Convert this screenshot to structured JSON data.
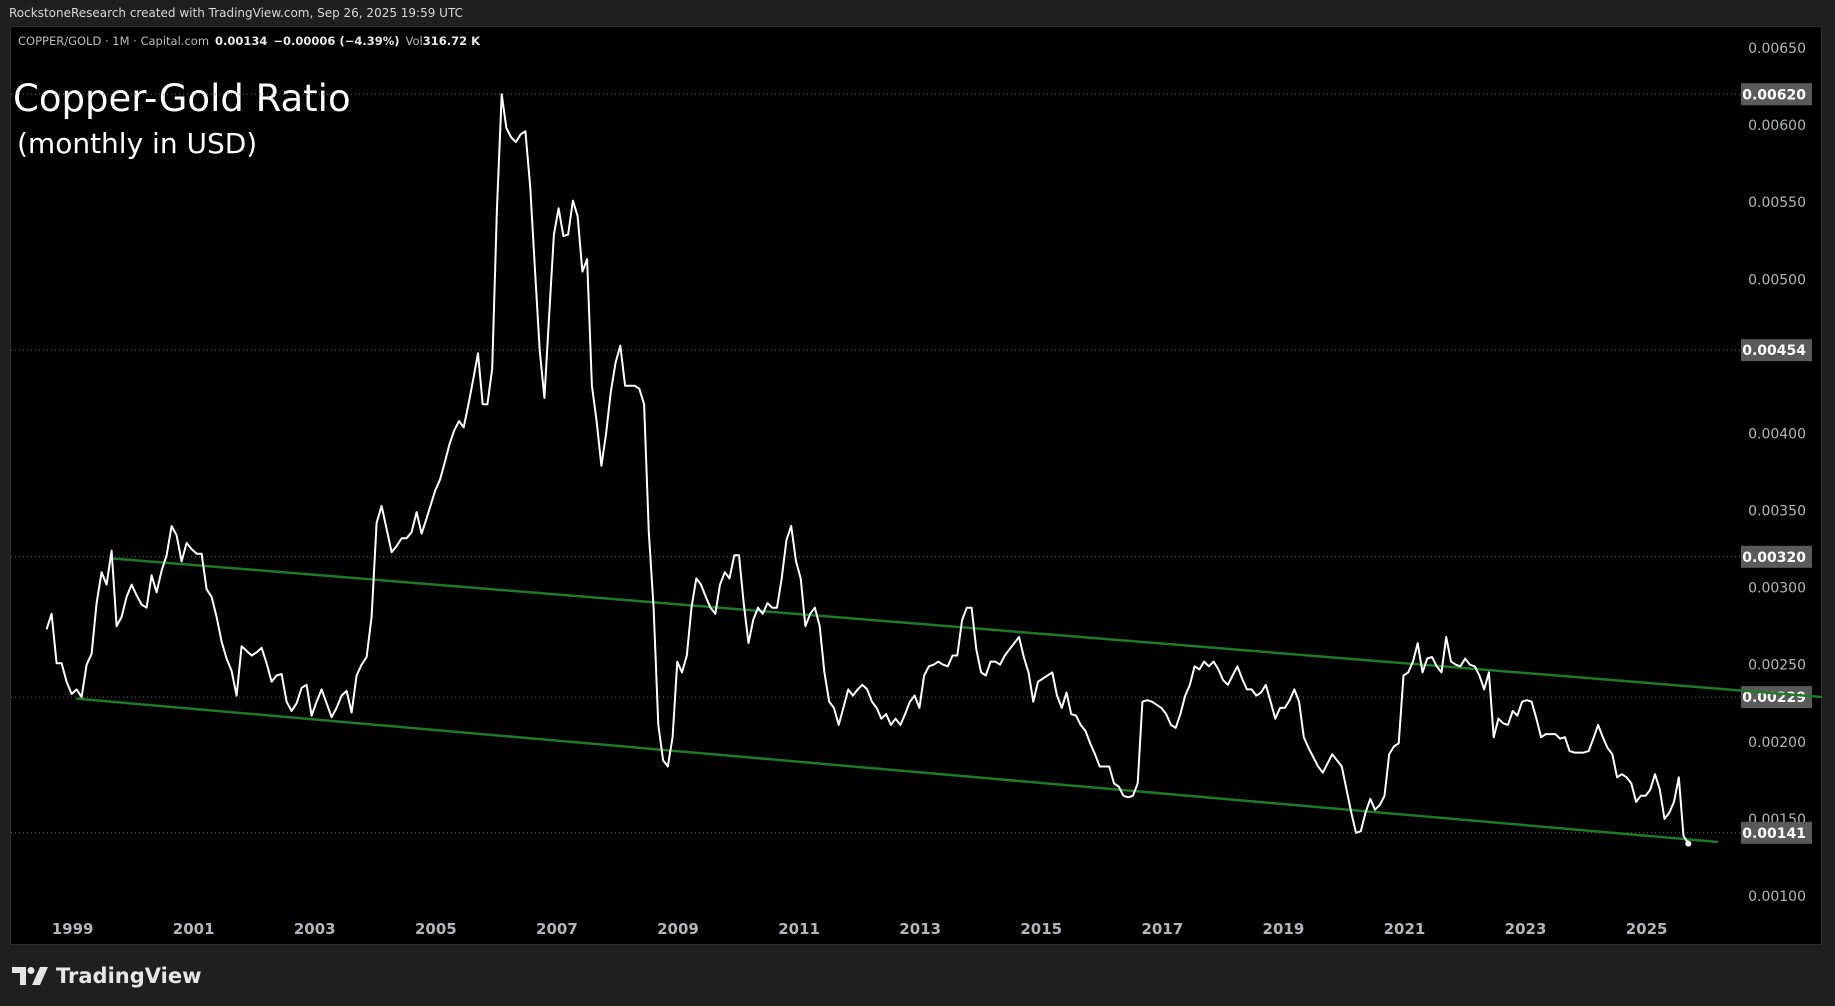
{
  "header": {
    "credit": "RockstoneResearch created with TradingView.com, Sep 26, 2025 19:59 UTC"
  },
  "legend": {
    "symbol": "COPPER/GOLD · 1M · Capital.com",
    "last": "0.00134",
    "change": "−0.00006 (−4.39%)",
    "vol_label": "Vol",
    "vol": "316.72 K"
  },
  "annotation": {
    "title": "Copper-Gold Ratio",
    "subtitle": "(monthly in USD)"
  },
  "footer": {
    "brand": "TradingView"
  },
  "colors": {
    "line": "#ffffff",
    "channel": "#1e7a2a",
    "label_bg": "#5a5a5a",
    "axis_text": "#b2b5be"
  },
  "chart_data": {
    "type": "line",
    "title": "Copper-Gold Ratio (monthly in USD)",
    "xlabel": "",
    "ylabel": "",
    "xlim": [
      1998.4,
      2028.0
    ],
    "ylim": [
      0.001,
      0.0065
    ],
    "x_ticks": [
      "1999",
      "2001",
      "2003",
      "2005",
      "2007",
      "2009",
      "2011",
      "2013",
      "2015",
      "2017",
      "2019",
      "2021",
      "2023",
      "2025"
    ],
    "y_ticks": [
      "0.00650",
      "0.00600",
      "0.00550",
      "0.00500",
      "0.00400",
      "0.00350",
      "0.00300",
      "0.00250",
      "0.00200",
      "0.00150",
      "0.00100"
    ],
    "price_labels": [
      "0.00620",
      "0.00454",
      "0.00320",
      "0.00229",
      "0.00141"
    ],
    "grid": false,
    "value_scale": 1e-05,
    "segments": [
      {
        "x_start": 1998.57,
        "x_step": 0.0826,
        "values": [
          273,
          283,
          251,
          251,
          239,
          231,
          234,
          229,
          250,
          257,
          290,
          310,
          302,
          324,
          275,
          281,
          294,
          302,
          295,
          289,
          287,
          308,
          297,
          311,
          321,
          340,
          334,
          317,
          329,
          325,
          322,
          322,
          299,
          294,
          281,
          265,
          254,
          246,
          230,
          262,
          259,
          256,
          258,
          261,
          251,
          239,
          243,
          244,
          226,
          220,
          225,
          235,
          237,
          217,
          226,
          234,
          225,
          216,
          222,
          230,
          233,
          219,
          243,
          250,
          255,
          281,
          342,
          353,
          338,
          323,
          327,
          332,
          332,
          336,
          349,
          335,
          345
        ]
      },
      {
        "x_start": 2004.99,
        "x_step": 0.0784,
        "values": [
          363,
          370,
          381,
          393,
          402,
          408,
          404,
          419,
          435,
          452,
          419,
          419,
          442,
          545,
          620,
          598,
          592,
          589,
          594,
          596,
          560,
          507,
          454,
          423,
          476,
          529,
          546,
          528,
          529,
          551,
          541,
          505,
          513,
          431,
          408,
          379,
          400,
          427,
          446,
          457,
          431,
          431,
          431,
          429,
          419,
          336,
          287,
          211,
          188,
          184,
          203,
          252,
          245,
          256,
          287,
          306,
          302,
          294,
          287,
          283,
          302,
          310,
          306,
          321,
          321,
          290,
          264,
          279,
          287,
          283,
          290,
          287,
          287,
          306,
          331,
          340,
          317,
          306,
          275,
          283,
          287,
          275,
          245,
          226,
          222,
          211,
          222,
          234,
          230,
          234,
          237,
          234,
          226,
          222,
          215,
          218,
          211,
          215,
          211,
          218,
          226,
          230,
          222,
          243,
          249,
          250,
          252,
          250,
          249,
          256,
          256,
          279,
          287,
          287,
          260,
          245,
          243,
          252,
          252,
          250,
          256,
          260,
          264,
          268,
          255,
          245,
          226,
          239,
          241,
          243,
          245,
          230,
          222,
          232,
          218,
          217,
          211,
          207,
          199,
          192,
          184,
          184,
          184,
          173,
          171,
          165,
          164,
          165,
          173,
          226,
          227,
          226,
          224,
          222,
          218,
          211,
          209,
          218,
          230,
          237,
          249,
          247,
          252,
          249,
          252,
          247,
          240,
          237,
          243,
          249,
          241,
          234,
          234,
          230,
          232,
          237,
          226,
          215,
          222,
          222,
          227,
          234,
          226,
          203,
          196,
          190,
          184,
          180,
          186,
          192,
          188,
          184,
          169,
          154,
          141,
          142,
          154,
          163,
          156,
          159,
          165,
          192,
          197,
          199,
          243,
          245,
          252,
          264,
          245,
          254,
          255,
          249,
          245,
          268,
          252,
          250,
          249,
          254,
          250,
          249,
          243,
          234,
          245,
          203,
          215,
          212,
          211,
          220,
          217,
          226,
          227,
          226,
          215,
          203,
          205,
          205,
          205,
          202,
          203,
          194,
          193,
          193,
          193,
          194,
          202,
          211,
          203,
          196,
          192,
          177,
          179,
          177,
          173,
          161,
          165,
          165,
          169,
          179,
          169,
          150,
          154,
          161,
          177,
          139,
          134
        ]
      }
    ],
    "channel_lines": [
      {
        "name": "upper",
        "from": [
          1999.64,
          0.00319
        ],
        "to": [
          2027.9,
          0.00229
        ]
      },
      {
        "name": "lower",
        "from": [
          1999.06,
          0.00228
        ],
        "to": [
          2026.18,
          0.00135
        ]
      }
    ]
  }
}
